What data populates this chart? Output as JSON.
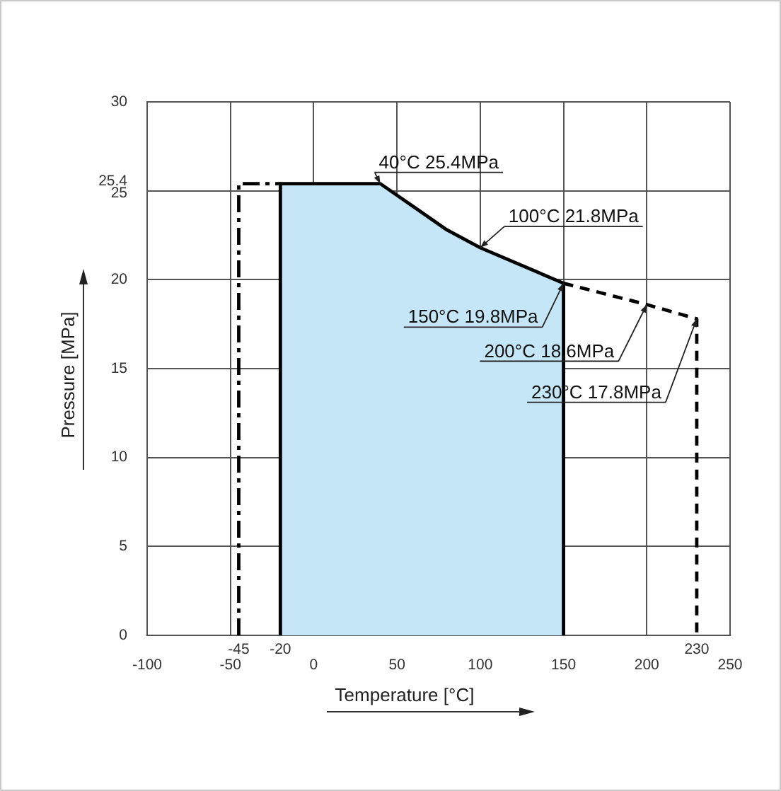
{
  "chart_data": {
    "type": "area",
    "xlabel": "Temperature [°C]",
    "ylabel": "Pressure [MPa]",
    "xlim": [
      -100,
      250
    ],
    "ylim": [
      0,
      30
    ],
    "xticks": [
      -100,
      -50,
      0,
      50,
      100,
      150,
      200,
      250
    ],
    "yticks": [
      0,
      5,
      10,
      15,
      20,
      25,
      25.4,
      30
    ],
    "grid": true,
    "marker": "none",
    "series": [
      {
        "color": "#c4e6f6",
        "x": [
          -20,
          -20,
          40,
          60,
          80,
          100,
          150,
          150
        ],
        "values": [
          0,
          25.4,
          25.4,
          24.1,
          22.8,
          21.8,
          19.8,
          0
        ],
        "line_style": "solid"
      },
      {
        "type": "line",
        "color": "#000000",
        "x": [
          150,
          200,
          230,
          230
        ],
        "values": [
          19.8,
          18.6,
          17.8,
          0
        ],
        "line_style": "dashed"
      },
      {
        "type": "line",
        "color": "#000000",
        "x": [
          -45,
          -45,
          -20
        ],
        "values": [
          0,
          25.4,
          25.4
        ],
        "line_style": "dashdot"
      }
    ],
    "annotations": [
      {
        "text": "40°C 25.4MPa",
        "x": 40,
        "y": 25.4
      },
      {
        "text": "100°C 21.8MPa",
        "x": 100,
        "y": 21.8
      },
      {
        "text": "150°C 19.8MPa",
        "x": 150,
        "y": 19.8
      },
      {
        "text": "200°C 18.6MPa",
        "x": 200,
        "y": 18.6
      },
      {
        "text": "230°C 17.8MPa",
        "x": 230,
        "y": 17.8
      },
      {
        "text": "-45",
        "x": -45,
        "y": 0
      },
      {
        "text": "-20",
        "x": -20,
        "y": 0
      },
      {
        "text": "230",
        "x": 230,
        "y": 0
      }
    ]
  }
}
